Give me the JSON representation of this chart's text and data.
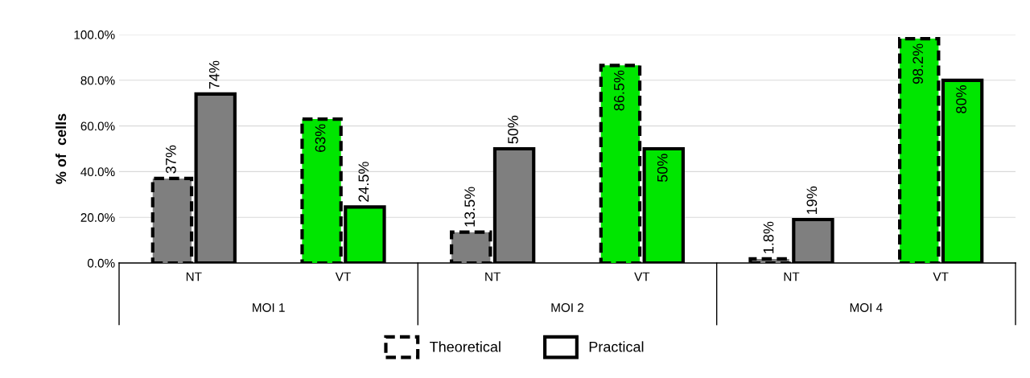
{
  "chart_data": {
    "type": "bar",
    "ylabel": "% of  cells",
    "categories": [
      "NT",
      "VT",
      "NT",
      "VT",
      "NT",
      "VT"
    ],
    "series": [
      {
        "name": "Theoretical",
        "line_style": "dashed",
        "colors": [
          "#7f7f7f",
          "#00e600",
          "#7f7f7f",
          "#00e600",
          "#7f7f7f",
          "#00e600"
        ],
        "values": [
          37,
          63,
          13.5,
          86.5,
          1.8,
          98.2
        ],
        "value_labels": [
          "37%",
          "63%",
          "13.5%",
          "86.5%",
          "1.8%",
          "98.2%"
        ]
      },
      {
        "name": "Practical",
        "line_style": "solid",
        "colors": [
          "#7f7f7f",
          "#00e600",
          "#7f7f7f",
          "#00e600",
          "#7f7f7f",
          "#00e600"
        ],
        "values": [
          74,
          24.5,
          50,
          50,
          19,
          80
        ],
        "value_labels": [
          "74%",
          "24.5%",
          "50%",
          "50%",
          "19%",
          "80%"
        ]
      }
    ],
    "annotations": [
      "MOI 1",
      "MOI 2",
      "MOI 4"
    ],
    "ylim": [
      0,
      100
    ],
    "yticks": [
      {
        "value": 0,
        "label": "0.0%"
      },
      {
        "value": 20,
        "label": "20.0%"
      },
      {
        "value": 40,
        "label": "40.0%"
      },
      {
        "value": 60,
        "label": "60.0%"
      },
      {
        "value": 80,
        "label": "80.0%"
      },
      {
        "value": 100,
        "label": "100.0%"
      }
    ],
    "grid": "y",
    "legend": "bottom"
  }
}
